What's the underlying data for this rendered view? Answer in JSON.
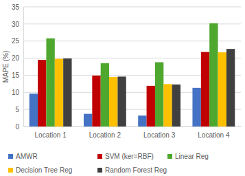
{
  "chart_data": {
    "type": "bar",
    "y_label": "MAPE (%)",
    "categories": [
      "Location 1",
      "Location 2",
      "Location 3",
      "Location 4"
    ],
    "series": [
      {
        "name": "AMWR",
        "color": "#4472c4",
        "values": [
          9.6,
          3.7,
          3.2,
          11.3
        ]
      },
      {
        "name": "SVM (ker=RBF)",
        "color": "#c00000",
        "values": [
          19.5,
          14.9,
          11.9,
          21.8
        ]
      },
      {
        "name": "Linear  Reg",
        "color": "#4ea72e",
        "values": [
          25.8,
          18.5,
          18.8,
          30.2
        ]
      },
      {
        "name": "Decision Tree Reg",
        "color": "#ffc000",
        "values": [
          19.8,
          14.5,
          12.4,
          21.7
        ]
      },
      {
        "name": "Random Forest Reg",
        "color": "#404040",
        "values": [
          19.9,
          14.6,
          12.3,
          22.7
        ]
      }
    ],
    "ylim": [
      0,
      35
    ],
    "yticks": [
      0,
      5,
      10,
      15,
      20,
      25,
      30,
      35
    ],
    "grid": true,
    "legend": "bottom"
  }
}
